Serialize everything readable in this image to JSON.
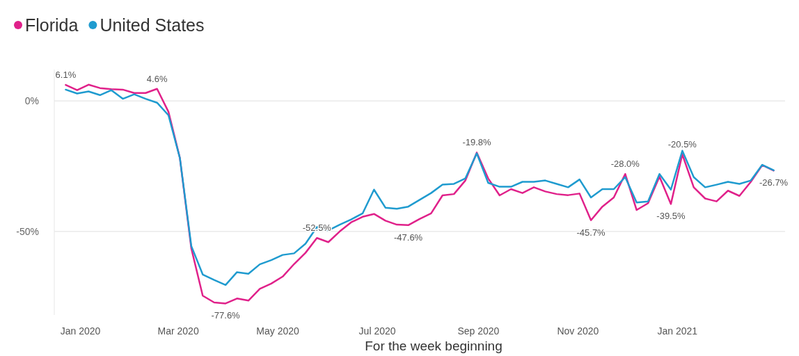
{
  "chart_data": {
    "type": "line",
    "xlabel": "For the week beginning",
    "legend": "top left",
    "grid": "y",
    "marker": "none",
    "line_style": "solid",
    "xlim": [
      "2019-12-16",
      "2021-03-08"
    ],
    "xticks": [
      {
        "value": "2020-01-01",
        "label": "Jan 2020"
      },
      {
        "value": "2020-03-01",
        "label": "Mar 2020"
      },
      {
        "value": "2020-05-01",
        "label": "May 2020"
      },
      {
        "value": "2020-07-01",
        "label": "Jul 2020"
      },
      {
        "value": "2020-09-01",
        "label": "Sep 2020"
      },
      {
        "value": "2020-11-01",
        "label": "Nov 2020"
      },
      {
        "value": "2021-01-01",
        "label": "Jan 2021"
      }
    ],
    "ylim": [
      -82,
      12
    ],
    "yticks": [
      {
        "value": 0,
        "label": "0%"
      },
      {
        "value": -50,
        "label": "-50%"
      }
    ],
    "x": [
      "2019-12-23",
      "2019-12-30",
      "2020-01-06",
      "2020-01-13",
      "2020-01-20",
      "2020-01-27",
      "2020-02-03",
      "2020-02-10",
      "2020-02-17",
      "2020-02-24",
      "2020-03-02",
      "2020-03-09",
      "2020-03-16",
      "2020-03-23",
      "2020-03-30",
      "2020-04-06",
      "2020-04-13",
      "2020-04-20",
      "2020-04-27",
      "2020-05-04",
      "2020-05-11",
      "2020-05-18",
      "2020-05-25",
      "2020-06-01",
      "2020-06-08",
      "2020-06-15",
      "2020-06-22",
      "2020-06-29",
      "2020-07-06",
      "2020-07-13",
      "2020-07-20",
      "2020-07-27",
      "2020-08-03",
      "2020-08-10",
      "2020-08-17",
      "2020-08-24",
      "2020-08-31",
      "2020-09-07",
      "2020-09-14",
      "2020-09-21",
      "2020-09-28",
      "2020-10-05",
      "2020-10-12",
      "2020-10-19",
      "2020-10-26",
      "2020-11-02",
      "2020-11-09",
      "2020-11-16",
      "2020-11-23",
      "2020-11-30",
      "2020-12-07",
      "2020-12-14",
      "2020-12-21",
      "2020-12-28",
      "2021-01-04",
      "2021-01-11",
      "2021-01-18",
      "2021-01-25",
      "2021-02-01",
      "2021-02-08",
      "2021-02-15",
      "2021-02-22",
      "2021-03-01"
    ],
    "series": [
      {
        "name": "Florida",
        "color": "#e0218a",
        "values": [
          6.1,
          4.1,
          6.2,
          4.9,
          4.5,
          4.3,
          3.0,
          3.0,
          4.6,
          -4.2,
          -21.9,
          -56.5,
          -74.6,
          -77.2,
          -77.6,
          -75.7,
          -76.5,
          -72.0,
          -70.0,
          -67.3,
          -62.5,
          -58.2,
          -52.5,
          -54.1,
          -50.0,
          -46.5,
          -44.4,
          -43.3,
          -45.9,
          -47.4,
          -47.6,
          -45.2,
          -43.1,
          -36.2,
          -35.7,
          -30.5,
          -19.8,
          -29.7,
          -36.2,
          -33.8,
          -35.3,
          -33.1,
          -34.7,
          -35.7,
          -36.1,
          -35.5,
          -45.7,
          -40.5,
          -37.0,
          -28.0,
          -41.8,
          -39.2,
          -29.0,
          -39.5,
          -20.5,
          -33.1,
          -37.4,
          -38.5,
          -34.4,
          -36.4,
          -31.0,
          -24.6,
          -26.7
        ]
      },
      {
        "name": "United States",
        "color": "#1f9bcf",
        "values": [
          4.3,
          2.8,
          3.6,
          2.2,
          4.1,
          0.8,
          2.5,
          0.8,
          -0.7,
          -5.5,
          -21.9,
          -55.6,
          -66.5,
          -68.6,
          -70.5,
          -65.6,
          -66.2,
          -62.6,
          -61.0,
          -59.0,
          -58.4,
          -54.7,
          -48.3,
          -49.6,
          -47.4,
          -45.4,
          -43.1,
          -34.0,
          -40.9,
          -41.3,
          -40.5,
          -37.9,
          -35.3,
          -32.1,
          -31.8,
          -29.7,
          -20.1,
          -31.4,
          -32.9,
          -32.9,
          -31.0,
          -31.0,
          -30.5,
          -31.8,
          -33.1,
          -30.1,
          -37.0,
          -33.8,
          -33.8,
          -29.2,
          -38.9,
          -38.5,
          -28.0,
          -34.0,
          -19.1,
          -29.2,
          -33.1,
          -32.1,
          -31.0,
          -31.8,
          -30.5,
          -24.5,
          -26.6
        ]
      }
    ],
    "annotations": [
      {
        "text": "6.1%",
        "x": "2019-12-23",
        "y": 6.1
      },
      {
        "text": "4.6%",
        "x": "2020-02-17",
        "y": 4.6
      },
      {
        "text": "-77.6%",
        "x": "2020-03-30",
        "y": -77.6
      },
      {
        "text": "-52.5%",
        "x": "2020-05-25",
        "y": -52.5
      },
      {
        "text": "-47.6%",
        "x": "2020-07-20",
        "y": -47.6
      },
      {
        "text": "-19.8%",
        "x": "2020-08-31",
        "y": -19.8
      },
      {
        "text": "-45.7%",
        "x": "2020-11-09",
        "y": -45.7
      },
      {
        "text": "-28.0%",
        "x": "2020-11-30",
        "y": -28.0
      },
      {
        "text": "-39.5%",
        "x": "2020-12-28",
        "y": -39.5
      },
      {
        "text": "-20.5%",
        "x": "2021-01-04",
        "y": -20.5
      },
      {
        "text": "-26.7%",
        "x": "2021-03-01",
        "y": -26.7
      }
    ]
  }
}
